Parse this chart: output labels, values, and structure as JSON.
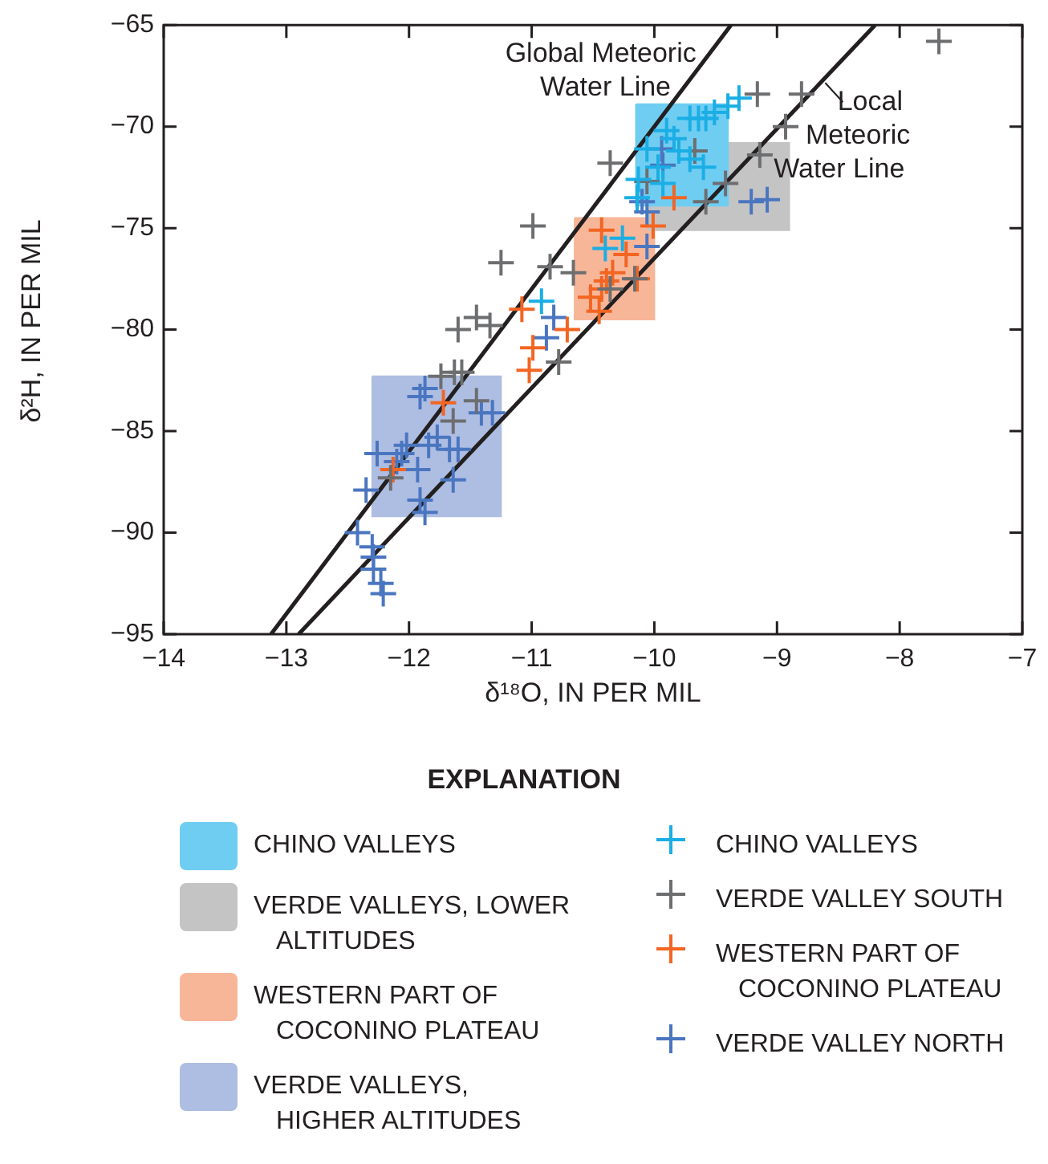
{
  "chart_data": {
    "type": "scatter",
    "xlabel": "δ¹⁸O, IN PER MIL",
    "ylabel": "δ²H, IN PER MIL",
    "legend_title": "EXPLANATION",
    "legend": "bottom",
    "grid": false,
    "marker": "cross",
    "xlim": [
      -14,
      -7
    ],
    "xticks": [
      -14,
      -13,
      -12,
      -11,
      -10,
      -9,
      -8,
      -7
    ],
    "ylim": [
      -95,
      -65
    ],
    "yticks": [
      -95,
      -90,
      -85,
      -80,
      -75,
      -70,
      -65
    ],
    "series": [
      {
        "type": "area",
        "marker": "none",
        "name": "CHINO VALLEYS",
        "color": "#6fcdf2",
        "x": [
          -10.15,
          -9.4,
          -9.4,
          -10.15,
          -10.15
        ],
        "values": [
          -68.9,
          -68.9,
          -73.9,
          -73.9,
          -68.9
        ]
      },
      {
        "type": "area",
        "marker": "none",
        "name": "VERDE VALLEYS, LOWER ALTITUDES",
        "color": "#c4c4c4",
        "x": [
          -10.05,
          -8.9,
          -8.9,
          -10.05,
          -10.05
        ],
        "values": [
          -70.8,
          -70.8,
          -75.1,
          -75.1,
          -70.8
        ]
      },
      {
        "type": "area",
        "marker": "none",
        "name": "WESTERN PART OF COCONINO PLATEAU",
        "color": "#f8b699",
        "x": [
          -10.65,
          -10,
          -10,
          -10.65,
          -10.65
        ],
        "values": [
          -74.5,
          -74.5,
          -79.5,
          -79.5,
          -74.5
        ]
      },
      {
        "type": "area",
        "marker": "none",
        "name": "VERDE VALLEYS, HIGHER ALTITUDES",
        "color": "#aebde2",
        "x": [
          -12.3,
          -11.25,
          -11.25,
          -12.3,
          -12.3
        ],
        "values": [
          -82.3,
          -82.3,
          -89.2,
          -89.2,
          -82.3
        ]
      },
      {
        "type": "line",
        "marker": "none",
        "name": "Global Meteoric Water Line",
        "color": "#231f20",
        "x": [
          -13.125,
          -9.375
        ],
        "values": [
          -95,
          -65
        ]
      },
      {
        "type": "line",
        "marker": "none",
        "name": "Local Meteoric Water Line",
        "color": "#231f20",
        "x": [
          -12.9,
          -8.2
        ],
        "values": [
          -95,
          -65
        ]
      },
      {
        "name": "CHINO VALLEYS",
        "color": "#1aaee5",
        "x": [
          -9.31,
          -9.4,
          -9.71,
          -9.64,
          -9.58,
          -9.51,
          -9.84,
          -9.9,
          -10.06,
          -9.8,
          -9.71,
          -9.6,
          -9.97,
          -10.13,
          -9.93,
          -10.14,
          -10.4,
          -10.26,
          -10.92
        ],
        "values": [
          -68.6,
          -69,
          -69.6,
          -69.6,
          -69.6,
          -69.3,
          -70.6,
          -70.2,
          -71.1,
          -71.2,
          -71.6,
          -72,
          -72,
          -72.6,
          -72.8,
          -73.5,
          -76,
          -75.5,
          -78.6
        ]
      },
      {
        "name": "VERDE VALLEY SOUTH",
        "color": "#6d6e70",
        "x": [
          -7.68,
          -8.8,
          -8.93,
          -9.16,
          -9.14,
          -9.42,
          -9.58,
          -10.06,
          -9.67,
          -10.36,
          -10.99,
          -11.25,
          -10.85,
          -10.66,
          -10.16,
          -10.36,
          -10.78,
          -11.34,
          -11.63,
          -11.57,
          -11.74,
          -11.45,
          -11.64,
          -12.15,
          -11.6,
          -11.45
        ],
        "values": [
          -65.8,
          -68.4,
          -70,
          -68.4,
          -71.4,
          -72.8,
          -73.7,
          -72.7,
          -71.2,
          -71.8,
          -74.9,
          -76.7,
          -76.9,
          -77.2,
          -77.5,
          -78,
          -81.6,
          -79.8,
          -82.1,
          -82.1,
          -82.3,
          -83.5,
          -84.5,
          -87.3,
          -80,
          -79.4
        ]
      },
      {
        "name": "WESTERN PART OF COCONINO PLATEAU",
        "color": "#f26522",
        "x": [
          -10.43,
          -10.01,
          -10.23,
          -10.34,
          -10.39,
          -10.43,
          -10.52,
          -10.45,
          -10.14,
          -11.08,
          -10.71,
          -10.99,
          -11.02,
          -11.72,
          -12.13,
          -9.84
        ],
        "values": [
          -75.1,
          -74.9,
          -76.3,
          -77.2,
          -77.6,
          -78,
          -78.4,
          -79.1,
          -77.5,
          -79,
          -80,
          -80.9,
          -82,
          -83.6,
          -86.9,
          -73.5
        ]
      },
      {
        "name": "VERDE VALLEY NORTH",
        "color": "#4a76c0",
        "x": [
          -11.87,
          -11.91,
          -11.41,
          -11.32,
          -12.26,
          -12.06,
          -12.02,
          -12.1,
          -11.93,
          -11.84,
          -11.77,
          -11.67,
          -11.6,
          -11.64,
          -12.35,
          -11.91,
          -11.87,
          -12.42,
          -12.3,
          -12.29,
          -12.29,
          -12.23,
          -12.21,
          -10.82,
          -10.88,
          -10.06,
          -9.21,
          -9.08,
          -9.93,
          -9.94,
          -10.1,
          -10.06
        ],
        "values": [
          -82.9,
          -83.3,
          -84.1,
          -84.1,
          -86.1,
          -86.1,
          -85.7,
          -86.5,
          -86.9,
          -85.7,
          -85.3,
          -85.9,
          -85.9,
          -87.4,
          -87.9,
          -88.4,
          -89,
          -90,
          -90.7,
          -91.2,
          -91.8,
          -92.5,
          -93,
          -79.4,
          -80.4,
          -75.9,
          -73.7,
          -73.6,
          -71.9,
          -71.1,
          -73.7,
          -74.2
        ]
      }
    ]
  }
}
